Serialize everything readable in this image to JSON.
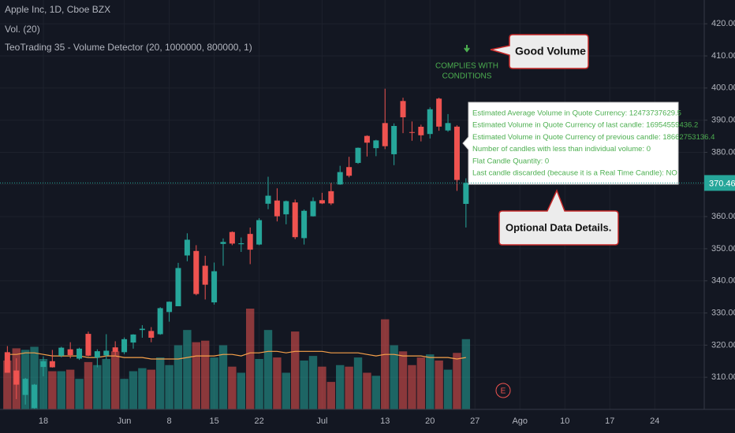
{
  "chart_data": {
    "type": "candlestick",
    "title": "Apple Inc, 1D, Cboe BZX",
    "subtitle": "Vol. (20)",
    "indicator": "TeoTrading 35 - Volume Detector (20, 1000000, 800000, 1)",
    "up_color": "#26a69a",
    "down_color": "#ef5350",
    "grid": true,
    "open": [
      317.8,
      312.1,
      304.5,
      300.4,
      313.2,
      315.0,
      316.7,
      318.7,
      315.8,
      323.5,
      316.1,
      316.8,
      319.3,
      317.8,
      320.8,
      324.7,
      324.4,
      323.4,
      330.3,
      332.1,
      347.9,
      349.3,
      344.7,
      333.3,
      351.5,
      355.2,
      351.4,
      354.6,
      351.3,
      364.0,
      365.0,
      360.7,
      364.4,
      353.3,
      360.1,
      365.1,
      367.9,
      370.0,
      375.4,
      376.7,
      385.1,
      381.3,
      389.1,
      379.4,
      395.96,
      386.3,
      387.95,
      385.7,
      396.7,
      386.8,
      387.99,
      363.95
    ],
    "high": [
      319.7,
      315.9,
      309.8,
      307.9,
      316.5,
      318.5,
      319.5,
      320.9,
      319.2,
      324.2,
      318.7,
      323.4,
      321.2,
      322.4,
      323.4,
      326.2,
      325.6,
      331.8,
      333.6,
      345.6,
      354.8,
      351.1,
      347.8,
      345.7,
      353.2,
      355.4,
      353.5,
      356.6,
      359.5,
      372.4,
      368.8,
      365.0,
      365.3,
      362.2,
      365.98,
      367.4,
      370.5,
      375.8,
      378.6,
      381.5,
      385.3,
      383.9,
      399.8,
      389.0,
      396.99,
      389.6,
      388.6,
      394.0,
      397.0,
      391.9,
      388.4,
      371.9
    ],
    "low": [
      311.8,
      303.2,
      301.5,
      300.2,
      310.3,
      313.0,
      316.2,
      315.9,
      315.4,
      316.5,
      313.1,
      315.6,
      316.5,
      317.2,
      318.9,
      322.3,
      320.9,
      323.2,
      327.3,
      332.1,
      346.1,
      335.5,
      334.2,
      332.6,
      344.7,
      351.1,
      349.0,
      345.2,
      351.1,
      362.3,
      358.5,
      357.6,
      353.0,
      351.3,
      360.0,
      363.9,
      363.6,
      369.9,
      372.2,
      376.4,
      378.7,
      378.8,
      381.0,
      376.0,
      385.96,
      383.6,
      383.4,
      384.3,
      386.7,
      386.4,
      368.0,
      356.6
    ],
    "close": [
      311.4,
      307.7,
      309.5,
      307.7,
      314.96,
      313.1,
      319.2,
      316.9,
      318.9,
      316.7,
      318.1,
      318.25,
      317.9,
      321.85,
      323.3,
      325.1,
      322.3,
      331.5,
      333.5,
      343.99,
      352.8,
      335.9,
      338.8,
      342.99,
      352.1,
      351.6,
      351.7,
      349.7,
      358.9,
      366.5,
      360.1,
      364.8,
      353.6,
      361.8,
      364.8,
      364.1,
      364.1,
      373.85,
      372.7,
      381.4,
      383.0,
      383.7,
      381.9,
      388.2,
      390.9,
      386.1,
      385.3,
      393.4,
      388.0,
      389.1,
      371.4,
      370.46
    ],
    "volume": {
      "name": "Vol. (20)",
      "values": [
        32,
        40,
        39,
        41,
        33,
        25,
        25,
        26,
        20,
        31,
        29,
        33,
        38,
        20,
        25,
        27,
        26,
        34,
        29,
        42,
        52,
        44,
        45,
        34,
        42,
        28,
        24,
        66,
        33,
        52,
        34,
        24,
        51,
        32,
        35,
        28,
        18,
        29,
        28,
        34,
        24,
        22,
        59,
        42,
        38,
        29,
        34,
        36,
        32,
        26,
        37,
        46
      ],
      "ma": [
        36,
        36,
        37,
        37,
        36,
        35,
        35,
        35,
        35,
        34,
        34,
        35,
        35,
        34,
        34,
        34,
        33,
        33,
        33,
        33,
        34,
        35,
        35,
        35,
        36,
        36,
        35,
        37,
        37,
        38,
        38,
        37,
        38,
        38,
        38,
        38,
        37,
        37,
        37,
        37,
        36,
        35,
        36,
        36,
        35,
        35,
        35,
        34,
        34,
        34,
        33,
        34
      ],
      "ma_color": "#f7a14a"
    },
    "xlim": [
      -0.82,
      77.5
    ],
    "xticks": [
      {
        "value": 4,
        "label": "18"
      },
      {
        "value": 13,
        "label": "Jun"
      },
      {
        "value": 18,
        "label": "8"
      },
      {
        "value": 23,
        "label": "15"
      },
      {
        "value": 28,
        "label": "22"
      },
      {
        "value": 35,
        "label": "Jul"
      },
      {
        "value": 42,
        "label": "13"
      },
      {
        "value": 47,
        "label": "20"
      },
      {
        "value": 52,
        "label": "27"
      },
      {
        "value": 57,
        "label": "Ago"
      },
      {
        "value": 62,
        "label": "10"
      },
      {
        "value": 67,
        "label": "17"
      },
      {
        "value": 72,
        "label": "24"
      }
    ],
    "ylim": [
      300,
      427.4
    ],
    "yticks": [
      {
        "value": 310,
        "label": "310.00"
      },
      {
        "value": 320,
        "label": "320.00"
      },
      {
        "value": 330,
        "label": "330.00"
      },
      {
        "value": 340,
        "label": "340.00"
      },
      {
        "value": 350,
        "label": "350.00"
      },
      {
        "value": 360,
        "label": "360.00"
      },
      {
        "value": 370,
        "label": "370.00"
      },
      {
        "value": 380,
        "label": "380.00"
      },
      {
        "value": 390,
        "label": "390.00"
      },
      {
        "value": 400,
        "label": "400.00"
      },
      {
        "value": 410,
        "label": "410.00"
      },
      {
        "value": 420,
        "label": "420.00"
      }
    ],
    "signal": [
      "COMPLIES WITH",
      "CONDITIONS"
    ],
    "callout_top": "Good Volume",
    "callout_bottom": "Optional Data Details.",
    "earnings_marker": "E",
    "info_lines": [
      "Estimated Average Volume in Quote Currency: 12473737629.5",
      "Estimated Volume in Quote Currency of last candle: 16954559436.2",
      "Estimated Volume in Quote Currency of previous candle: 18662753136.4",
      "Number of candles with less than individual volume: 0",
      "Flat Candle Quantity: 0",
      "Last candle discarded (because it is a Real Time Candle): NO"
    ]
  }
}
